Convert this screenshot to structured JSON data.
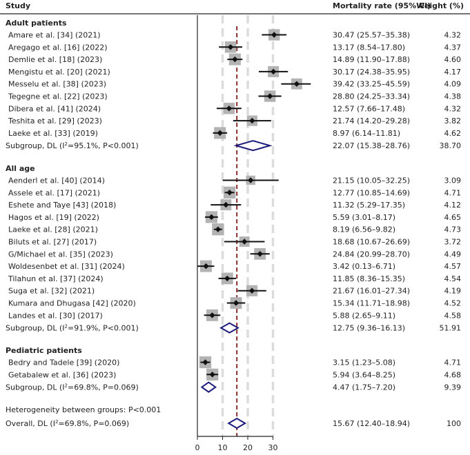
{
  "chart_data": {
    "type": "forest",
    "header": {
      "study": "Study",
      "rate": "Mortality rate (95% CI)",
      "weight": "Weight (%)"
    },
    "axis": {
      "xlim": [
        0,
        45
      ],
      "ticks": [
        0,
        10,
        20,
        30
      ],
      "tick_labels": [
        "0",
        "10",
        "20",
        "30"
      ],
      "overall_line": 15.67
    },
    "groups": [
      {
        "name": "Adult patients",
        "studies": [
          {
            "label": "Amare et al. [34] (2021)",
            "est": 30.47,
            "lo": 25.57,
            "hi": 35.38,
            "ci": "30.47 (25.57–35.38)",
            "weight": "4.32"
          },
          {
            "label": "Aregago et al. [16] (2022)",
            "est": 13.17,
            "lo": 8.54,
            "hi": 17.8,
            "ci": "13.17 (8.54–17.80)",
            "weight": "4.37"
          },
          {
            "label": "Demlie et al. [18] (2023)",
            "est": 14.89,
            "lo": 11.9,
            "hi": 17.88,
            "ci": "14.89 (11.90–17.88)",
            "weight": "4.60"
          },
          {
            "label": "Mengistu et al. [20] (2021)",
            "est": 30.17,
            "lo": 24.38,
            "hi": 35.95,
            "ci": "30.17 (24.38–35.95)",
            "weight": "4.17"
          },
          {
            "label": "Messelu et al. [38] (2023)",
            "est": 39.42,
            "lo": 33.25,
            "hi": 45.59,
            "ci": "39.42 (33.25–45.59)",
            "weight": "4.09"
          },
          {
            "label": "Tegegne et al. [22] (2023)",
            "est": 28.8,
            "lo": 24.25,
            "hi": 33.34,
            "ci": "28.80 (24.25–33.34)",
            "weight": "4.38"
          },
          {
            "label": "Dibera et al. [41] (2024)",
            "est": 12.57,
            "lo": 7.66,
            "hi": 17.48,
            "ci": "12.57 (7.66–17.48)",
            "weight": "4.32"
          },
          {
            "label": "Teshita et al. [29] (2023)",
            "est": 21.74,
            "lo": 14.2,
            "hi": 29.28,
            "ci": "21.74 (14.20–29.28)",
            "weight": "3.82"
          },
          {
            "label": "Laeke et al. [33] (2019)",
            "est": 8.97,
            "lo": 6.14,
            "hi": 11.81,
            "ci": "8.97 (6.14–11.81)",
            "weight": "4.62"
          }
        ],
        "subgroup": {
          "label_pre": "Subgroup, DL (I",
          "label_post": "=95.1%, P<0.001)",
          "est": 22.07,
          "lo": 15.38,
          "hi": 28.76,
          "ci": "22.07 (15.38–28.76)",
          "weight": "38.70"
        }
      },
      {
        "name": "All age",
        "studies": [
          {
            "label": "Aenderl et al. [40] (2014)",
            "est": 21.15,
            "lo": 10.05,
            "hi": 32.25,
            "ci": "21.15 (10.05–32.25)",
            "weight": "3.09"
          },
          {
            "label": "Assele et al. [17] (2021)",
            "est": 12.77,
            "lo": 10.85,
            "hi": 14.69,
            "ci": "12.77 (10.85–14.69)",
            "weight": "4.71"
          },
          {
            "label": "Eshete and Taye [43] (2018)",
            "est": 11.32,
            "lo": 5.29,
            "hi": 17.35,
            "ci": "11.32 (5.29–17.35)",
            "weight": "4.12"
          },
          {
            "label": "Hagos et al. [19] (2022)",
            "est": 5.59,
            "lo": 3.01,
            "hi": 8.17,
            "ci": "5.59 (3.01–8.17)",
            "weight": "4.65"
          },
          {
            "label": "Laeke et al. [28] (2021)",
            "est": 8.19,
            "lo": 6.56,
            "hi": 9.82,
            "ci": "8.19 (6.56–9.82)",
            "weight": "4.73"
          },
          {
            "label": "Biluts et al. [27] (2017)",
            "est": 18.68,
            "lo": 10.67,
            "hi": 26.69,
            "ci": "18.68 (10.67–26.69)",
            "weight": "3.72"
          },
          {
            "label": "G/Michael et al. [35] (2023)",
            "est": 24.84,
            "lo": 20.99,
            "hi": 28.7,
            "ci": "24.84 (20.99–28.70)",
            "weight": "4.49"
          },
          {
            "label": "Woldesenbet et al. [31] (2024)",
            "est": 3.42,
            "lo": 0.13,
            "hi": 6.71,
            "ci": "3.42 (0.13–6.71)",
            "weight": "4.57"
          },
          {
            "label": "Tilahun et al. [37] (2024)",
            "est": 11.85,
            "lo": 8.36,
            "hi": 15.35,
            "ci": "11.85 (8.36–15.35)",
            "weight": "4.54"
          },
          {
            "label": "Suga et al. [32] (2021)",
            "est": 21.67,
            "lo": 16.01,
            "hi": 27.34,
            "ci": "21.67 (16.01–27.34)",
            "weight": "4.19"
          },
          {
            "label": "Kumara and Dhugasa [42] (2020)",
            "est": 15.34,
            "lo": 11.71,
            "hi": 18.98,
            "ci": "15.34 (11.71–18.98)",
            "weight": "4.52"
          },
          {
            "label": "Landes et al. [30] (2017)",
            "est": 5.88,
            "lo": 2.65,
            "hi": 9.11,
            "ci": "5.88 (2.65–9.11)",
            "weight": "4.58"
          }
        ],
        "subgroup": {
          "label_pre": "Subgroup, DL (I",
          "label_post": "=91.9%, P<0.001)",
          "est": 12.75,
          "lo": 9.36,
          "hi": 16.13,
          "ci": "12.75 (9.36–16.13)",
          "weight": "51.91"
        }
      },
      {
        "name": "Pediatric patients",
        "studies": [
          {
            "label": "Bedry and Tadele [39] (2020)",
            "est": 3.15,
            "lo": 1.23,
            "hi": 5.08,
            "ci": "3.15 (1.23–5.08)",
            "weight": "4.71"
          },
          {
            "label": "Getabalew et al. [36] (2023)",
            "est": 5.94,
            "lo": 3.64,
            "hi": 8.25,
            "ci": "5.94 (3.64–8.25)",
            "weight": "4.68"
          }
        ],
        "subgroup": {
          "label_pre": "Subgroup, DL (I",
          "label_post": "=69.8%, P=0.069)",
          "est": 4.47,
          "lo": 1.75,
          "hi": 7.2,
          "ci": "4.47 (1.75–7.20)",
          "weight": "9.39"
        }
      }
    ],
    "heterogeneity": "Heterogeneity between groups: P<0.001",
    "overall": {
      "label_pre": "Overall, DL (I",
      "label_post": "=69.8%, P=0.069)",
      "est": 15.67,
      "lo": 12.4,
      "hi": 18.94,
      "ci": "15.67 (12.40–18.94)",
      "weight": "100"
    },
    "sup": "2"
  }
}
